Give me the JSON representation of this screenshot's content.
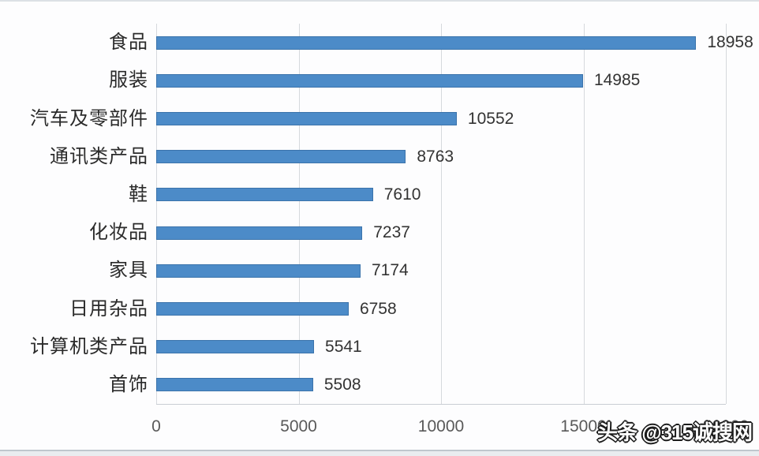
{
  "chart_data": {
    "type": "bar",
    "orientation": "horizontal",
    "title": "",
    "xlabel": "",
    "ylabel": "",
    "categories": [
      "食品",
      "服装",
      "汽车及零部件",
      "通讯类产品",
      "鞋",
      "化妆品",
      "家具",
      "日用杂品",
      "计算机类产品",
      "首饰"
    ],
    "values": [
      18958,
      14985,
      10552,
      8763,
      7610,
      7237,
      7174,
      6758,
      5541,
      5508
    ],
    "xlim": [
      0,
      20000
    ],
    "xticks": [
      0,
      5000,
      10000,
      15000,
      20000
    ],
    "grid": true,
    "legend": false,
    "colors": {
      "bar": "#4C8BC8",
      "bar_border": "#3B73AB",
      "gridline": "#D6D9DD",
      "axis_line": "#C9CED4",
      "category_label": "#2B2B2B",
      "value_label": "#333333",
      "tick_label": "#595959",
      "background": "#FDFDFE"
    }
  },
  "watermark": {
    "text": "头条 @315诚搜网"
  }
}
